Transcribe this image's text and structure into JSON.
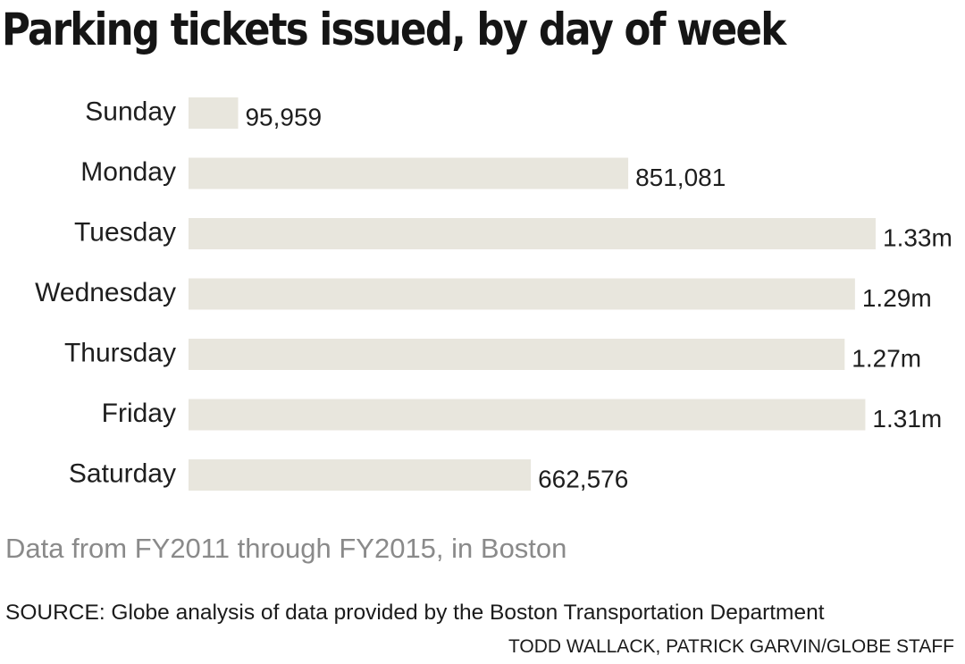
{
  "title": "Parking tickets issued, by day of week",
  "note": "Data from FY2011 through FY2015, in Boston",
  "source": "SOURCE: Globe analysis of data provided by the Boston Transportation Department",
  "credit": "TODD WALLACK, PATRICK GARVIN/GLOBE STAFF",
  "colors": {
    "bar": "#e8e6dd",
    "text": "#1e1e1e",
    "note": "#8a8a8a"
  },
  "chart_data": {
    "type": "bar",
    "orientation": "horizontal",
    "title": "Parking tickets issued, by day of week",
    "categories": [
      "Sunday",
      "Monday",
      "Tuesday",
      "Wednesday",
      "Thursday",
      "Friday",
      "Saturday"
    ],
    "values": [
      95959,
      851081,
      1330000,
      1290000,
      1270000,
      1310000,
      662576
    ],
    "value_labels": [
      "95,959",
      "851,081",
      "1.33m",
      "1.29m",
      "1.27m",
      "1.31m",
      "662,576"
    ],
    "xlabel": "",
    "ylabel": "",
    "xlim": [
      0,
      1330000
    ],
    "grid": false,
    "legend": "none"
  }
}
